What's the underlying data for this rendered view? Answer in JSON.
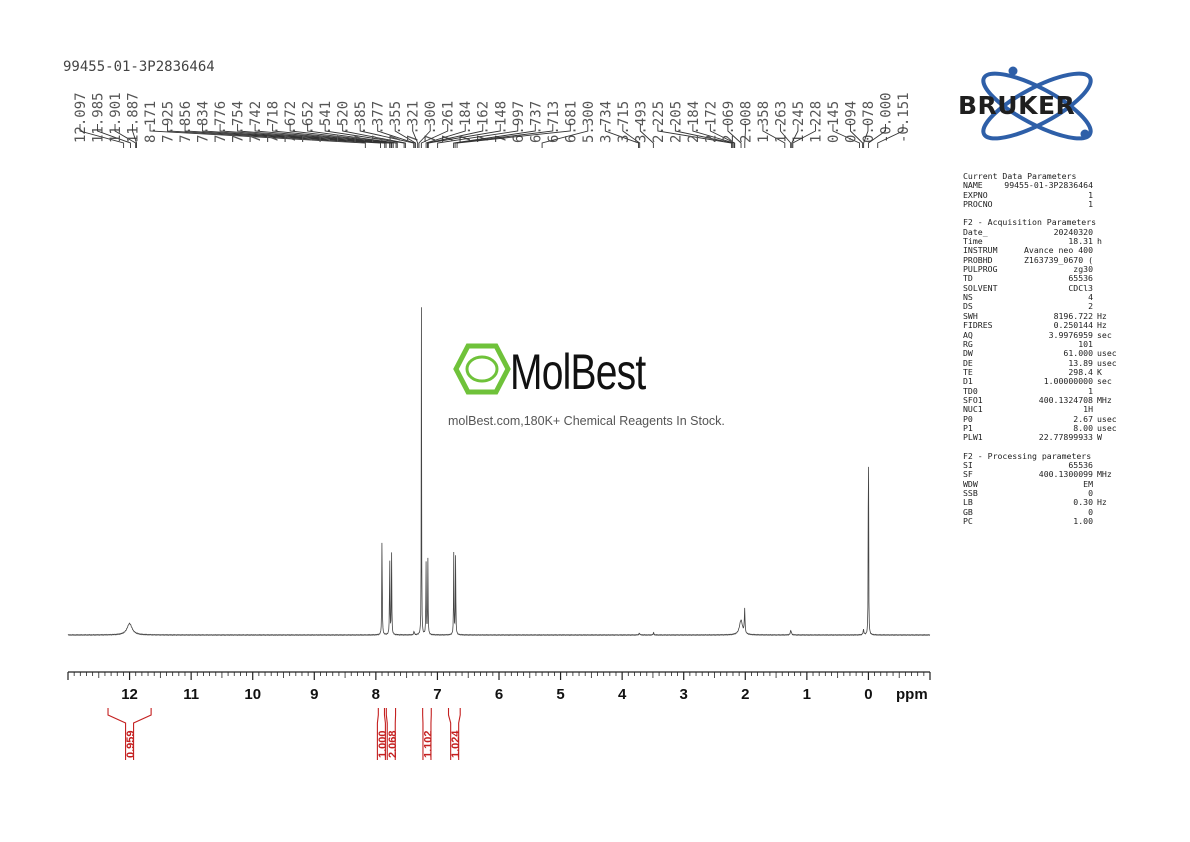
{
  "sample_title": "99455-01-3P2836464",
  "brand": {
    "logo_text": "BRUKER",
    "logo_color": "#2e5fa8"
  },
  "watermark": {
    "name": "MolBest",
    "tagline": "molBest.com,180K+ Chemical Reagents In Stock.",
    "hex_color": "#6fc23a"
  },
  "chart_data": {
    "type": "line",
    "xlabel": "ppm",
    "xlim": [
      13.0,
      -1.0
    ],
    "x_reversed": true,
    "x_ticks": [
      "12",
      "11",
      "10",
      "9",
      "8",
      "7",
      "6",
      "5",
      "4",
      "3",
      "2",
      "1",
      "0"
    ],
    "x_tick_values": [
      12,
      11,
      10,
      9,
      8,
      7,
      6,
      5,
      4,
      3,
      2,
      1,
      0
    ],
    "peak_labels": [
      "12.097",
      "11.985",
      "11.901",
      "11.887",
      "8.171",
      "7.925",
      "7.856",
      "7.834",
      "7.776",
      "7.754",
      "7.742",
      "7.718",
      "7.672",
      "7.652",
      "7.541",
      "7.520",
      "7.385",
      "7.377",
      "7.355",
      "7.321",
      "7.300",
      "7.261",
      "7.184",
      "7.162",
      "7.148",
      "6.997",
      "6.737",
      "6.713",
      "6.681",
      "5.300",
      "3.734",
      "3.715",
      "3.493",
      "2.225",
      "2.205",
      "2.184",
      "2.172",
      "2.069",
      "2.008",
      "1.358",
      "1.263",
      "1.245",
      "1.228",
      "0.145",
      "0.094",
      "0.078",
      "-0.000",
      "-0.151"
    ],
    "peak_positions": [
      12.097,
      11.985,
      11.901,
      11.887,
      8.171,
      7.925,
      7.856,
      7.834,
      7.776,
      7.754,
      7.742,
      7.718,
      7.672,
      7.652,
      7.541,
      7.52,
      7.385,
      7.377,
      7.355,
      7.321,
      7.3,
      7.261,
      7.184,
      7.162,
      7.148,
      6.997,
      6.737,
      6.713,
      6.681,
      5.3,
      3.734,
      3.715,
      3.493,
      2.225,
      2.205,
      2.184,
      2.172,
      2.069,
      2.008,
      1.358,
      1.263,
      1.245,
      1.228,
      0.145,
      0.094,
      0.078,
      0.0,
      -0.151
    ],
    "signals": [
      {
        "ppm": 12.0,
        "height": 0.035,
        "width": 0.05
      },
      {
        "ppm": 7.9,
        "height": 0.33,
        "width": 0.004
      },
      {
        "ppm": 7.775,
        "height": 0.26,
        "width": 0.004
      },
      {
        "ppm": 7.745,
        "height": 0.26,
        "width": 0.004
      },
      {
        "ppm": 7.26,
        "height": 1.0,
        "width": 0.003
      },
      {
        "ppm": 7.185,
        "height": 0.23,
        "width": 0.004
      },
      {
        "ppm": 7.155,
        "height": 0.23,
        "width": 0.004
      },
      {
        "ppm": 6.735,
        "height": 0.25,
        "width": 0.004
      },
      {
        "ppm": 6.705,
        "height": 0.25,
        "width": 0.004
      },
      {
        "ppm": 7.38,
        "height": 0.012,
        "width": 0.006
      },
      {
        "ppm": 3.72,
        "height": 0.005,
        "width": 0.01
      },
      {
        "ppm": 3.49,
        "height": 0.008,
        "width": 0.006
      },
      {
        "ppm": 2.07,
        "height": 0.045,
        "width": 0.03
      },
      {
        "ppm": 2.01,
        "height": 0.075,
        "width": 0.006
      },
      {
        "ppm": 1.26,
        "height": 0.014,
        "width": 0.01
      },
      {
        "ppm": 0.08,
        "height": 0.016,
        "width": 0.008
      },
      {
        "ppm": 0.0,
        "height": 0.87,
        "width": 0.003
      }
    ],
    "integrals": [
      {
        "label": "0.959",
        "from": 12.35,
        "to": 11.65,
        "center": 12.0
      },
      {
        "label": "1.000",
        "from": 7.96,
        "to": 7.86,
        "center": 7.91
      },
      {
        "label": "2.068",
        "from": 7.83,
        "to": 7.68,
        "center": 7.75
      },
      {
        "label": "1.102",
        "from": 7.24,
        "to": 7.1,
        "center": 7.17
      },
      {
        "label": "1.024",
        "from": 6.82,
        "to": 6.63,
        "center": 6.72
      }
    ],
    "integral_color": "#c42020"
  },
  "params": {
    "header1": "Current Data Parameters",
    "group1": [
      {
        "k": "NAME",
        "v": "99455-01-3P2836464",
        "u": ""
      },
      {
        "k": "EXPNO",
        "v": "1",
        "u": ""
      },
      {
        "k": "PROCNO",
        "v": "1",
        "u": ""
      }
    ],
    "header2": "F2 - Acquisition Parameters",
    "group2": [
      {
        "k": "Date_",
        "v": "20240320",
        "u": ""
      },
      {
        "k": "Time",
        "v": "18.31",
        "u": "h"
      },
      {
        "k": "INSTRUM",
        "v": "Avance neo 400",
        "u": ""
      },
      {
        "k": "PROBHD",
        "v": "Z163739_0670 (",
        "u": ""
      },
      {
        "k": "PULPROG",
        "v": "zg30",
        "u": ""
      },
      {
        "k": "TD",
        "v": "65536",
        "u": ""
      },
      {
        "k": "SOLVENT",
        "v": "CDCl3",
        "u": ""
      },
      {
        "k": "NS",
        "v": "4",
        "u": ""
      },
      {
        "k": "DS",
        "v": "2",
        "u": ""
      },
      {
        "k": "SWH",
        "v": "8196.722",
        "u": "Hz"
      },
      {
        "k": "FIDRES",
        "v": "0.250144",
        "u": "Hz"
      },
      {
        "k": "AQ",
        "v": "3.9976959",
        "u": "sec"
      },
      {
        "k": "RG",
        "v": "101",
        "u": ""
      },
      {
        "k": "DW",
        "v": "61.000",
        "u": "usec"
      },
      {
        "k": "DE",
        "v": "13.89",
        "u": "usec"
      },
      {
        "k": "TE",
        "v": "298.4",
        "u": "K"
      },
      {
        "k": "D1",
        "v": "1.00000000",
        "u": "sec"
      },
      {
        "k": "TD0",
        "v": "1",
        "u": ""
      },
      {
        "k": "SFO1",
        "v": "400.1324708",
        "u": "MHz"
      },
      {
        "k": "NUC1",
        "v": "1H",
        "u": ""
      },
      {
        "k": "P0",
        "v": "2.67",
        "u": "usec"
      },
      {
        "k": "P1",
        "v": "8.00",
        "u": "usec"
      },
      {
        "k": "PLW1",
        "v": "22.77899933",
        "u": "W"
      }
    ],
    "header3": "F2 - Processing parameters",
    "group3": [
      {
        "k": "SI",
        "v": "65536",
        "u": ""
      },
      {
        "k": "SF",
        "v": "400.1300099",
        "u": "MHz"
      },
      {
        "k": "WDW",
        "v": "EM",
        "u": ""
      },
      {
        "k": "SSB",
        "v": "0",
        "u": ""
      },
      {
        "k": "LB",
        "v": "0.30",
        "u": "Hz"
      },
      {
        "k": "GB",
        "v": "0",
        "u": ""
      },
      {
        "k": "PC",
        "v": "1.00",
        "u": ""
      }
    ]
  }
}
